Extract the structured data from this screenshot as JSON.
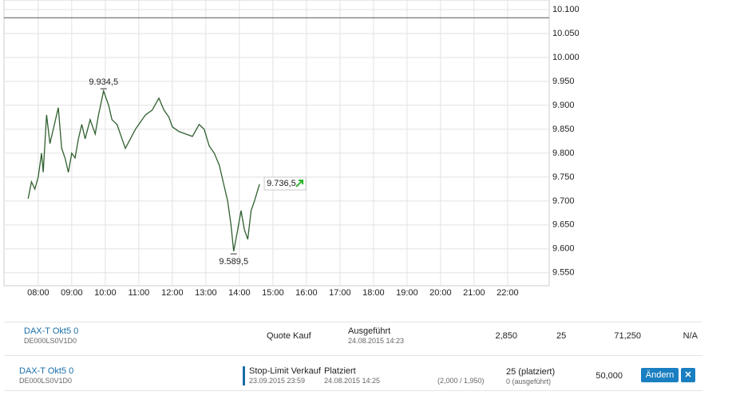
{
  "chart_data": {
    "type": "line",
    "x": [
      7.7,
      7.8,
      7.9,
      8.0,
      8.1,
      8.15,
      8.25,
      8.35,
      8.45,
      8.6,
      8.7,
      8.8,
      8.9,
      9.0,
      9.1,
      9.2,
      9.3,
      9.4,
      9.55,
      9.7,
      9.8,
      9.95,
      10.1,
      10.2,
      10.35,
      10.5,
      10.6,
      10.75,
      10.9,
      11.0,
      11.2,
      11.4,
      11.6,
      11.75,
      11.9,
      12.0,
      12.2,
      12.4,
      12.6,
      12.8,
      12.95,
      13.1,
      13.25,
      13.4,
      13.5,
      13.65,
      13.75,
      13.83,
      13.95,
      14.05,
      14.15,
      14.25,
      14.35,
      14.45,
      14.6
    ],
    "series": [
      {
        "color": "#2f5f2f",
        "values": [
          9705,
          9740,
          9725,
          9750,
          9800,
          9760,
          9880,
          9820,
          9850,
          9895,
          9810,
          9790,
          9760,
          9800,
          9790,
          9830,
          9860,
          9830,
          9870,
          9840,
          9880,
          9930,
          9900,
          9870,
          9860,
          9830,
          9810,
          9830,
          9850,
          9860,
          9880,
          9890,
          9915,
          9890,
          9875,
          9855,
          9845,
          9840,
          9835,
          9860,
          9850,
          9815,
          9800,
          9775,
          9745,
          9700,
          9650,
          9595,
          9640,
          9680,
          9640,
          9620,
          9680,
          9700,
          9735
        ]
      }
    ],
    "xlim": [
      6.98,
      23.24
    ],
    "ylim": [
      9523,
      10120
    ],
    "xticks": [
      {
        "value": 8,
        "label": "08:00"
      },
      {
        "value": 9,
        "label": "09:00"
      },
      {
        "value": 10,
        "label": "10:00"
      },
      {
        "value": 11,
        "label": "11:00"
      },
      {
        "value": 12,
        "label": "12:00"
      },
      {
        "value": 13,
        "label": "13:00"
      },
      {
        "value": 14,
        "label": "14:00"
      },
      {
        "value": 15,
        "label": "15:00"
      },
      {
        "value": 16,
        "label": "16:00"
      },
      {
        "value": 17,
        "label": "17:00"
      },
      {
        "value": 18,
        "label": "18:00"
      },
      {
        "value": 19,
        "label": "19:00"
      },
      {
        "value": 20,
        "label": "20:00"
      },
      {
        "value": 21,
        "label": "21:00"
      },
      {
        "value": 22,
        "label": "22:00"
      }
    ],
    "yticks": [
      {
        "value": 9550,
        "label": "9.550"
      },
      {
        "value": 9600,
        "label": "9.600"
      },
      {
        "value": 9650,
        "label": "9.650"
      },
      {
        "value": 9700,
        "label": "9.700"
      },
      {
        "value": 9750,
        "label": "9.750"
      },
      {
        "value": 9800,
        "label": "9.800"
      },
      {
        "value": 9850,
        "label": "9.850"
      },
      {
        "value": 9900,
        "label": "9.900"
      },
      {
        "value": 9950,
        "label": "9.950"
      },
      {
        "value": 10000,
        "label": "10.000"
      },
      {
        "value": 10050,
        "label": "10.050"
      },
      {
        "value": 10100,
        "label": "10.100"
      }
    ],
    "grid": true,
    "reference_line": 10083,
    "reference_color": "#555555",
    "annotations": [
      {
        "x": 9.95,
        "value": 9934.5,
        "label": "9.934,5"
      },
      {
        "x": 13.83,
        "value": 9589.5,
        "label": "9.589,5"
      }
    ],
    "last": {
      "x": 14.6,
      "value": 9736.5,
      "label": "9.736,5"
    }
  },
  "orders": [
    {
      "name": "DAX-T Okt5 0",
      "isin": "DE000LS0V1D0",
      "type": "Quote Kauf",
      "status": "Ausgeführt",
      "status_date": "24.08.2015 14:23",
      "price": "2,850",
      "quantity": "25",
      "total": "71,250",
      "extra": "N/A"
    },
    {
      "name": "DAX-T Okt5 0",
      "isin": "DE000LS0V1D0",
      "type": "Stop-Limit Verkauf",
      "type_date": "23.09.2015 23:59",
      "status": "Platziert",
      "status_date": "24.08.2015 14:25",
      "limits": "(2,000 / 1,950)",
      "quantity": "25 (platziert)",
      "executed": "0 (ausgeführt)",
      "total": "50,000",
      "button": "Ändern",
      "close": "✕"
    }
  ]
}
